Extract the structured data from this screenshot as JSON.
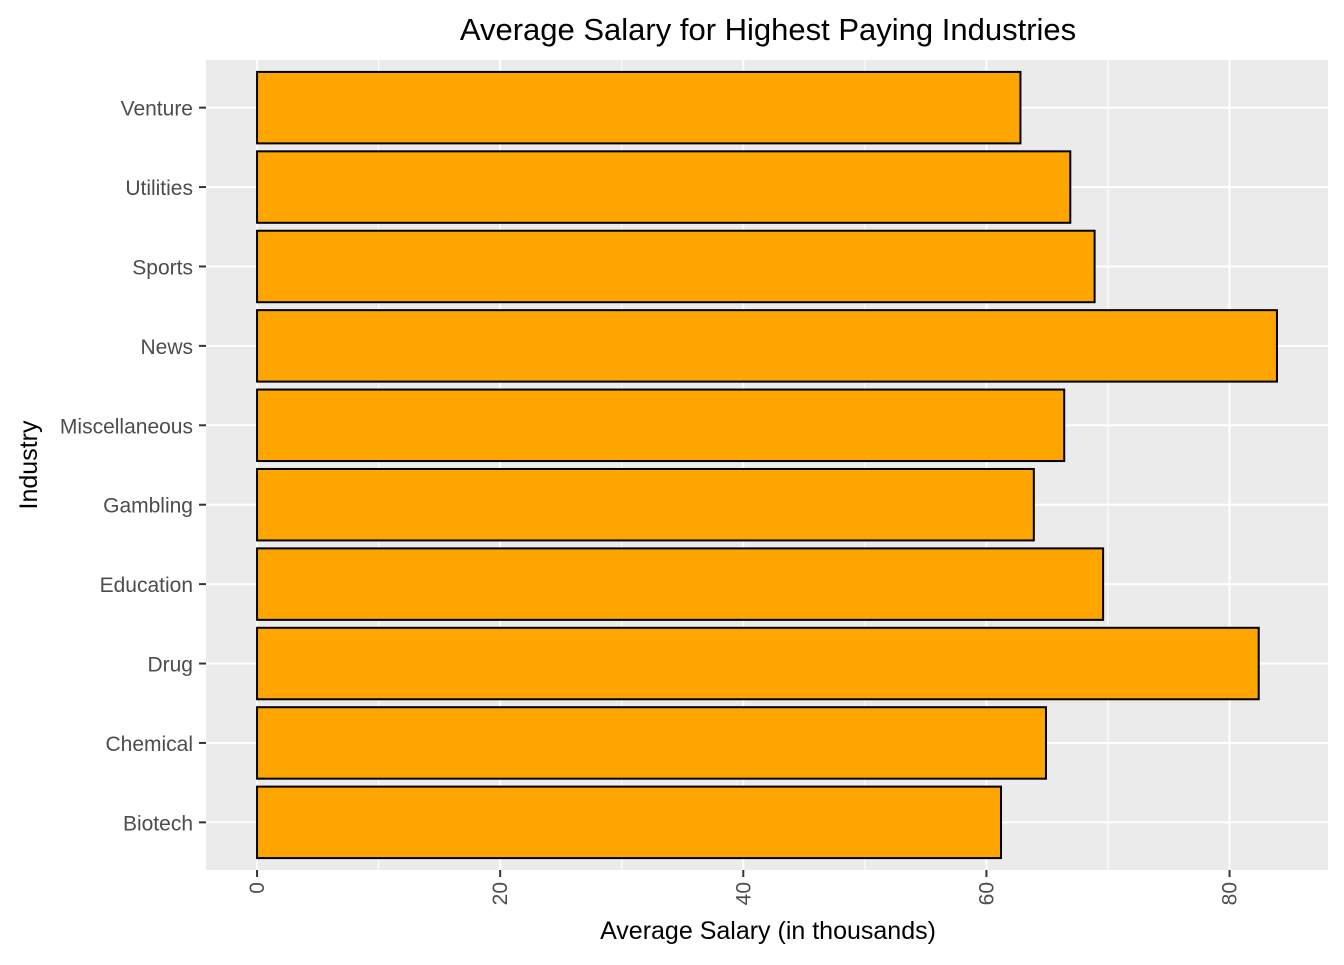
{
  "chart_data": {
    "type": "bar",
    "orientation": "horizontal",
    "title": "Average Salary for Highest Paying Industries",
    "xlabel": "Average Salary (in thousands)",
    "ylabel": "Industry",
    "categories": [
      "Biotech",
      "Chemical",
      "Drug",
      "Education",
      "Gambling",
      "Miscellaneous",
      "News",
      "Sports",
      "Utilities",
      "Venture"
    ],
    "values": [
      61.2,
      64.9,
      82.4,
      69.6,
      63.9,
      66.4,
      83.9,
      68.9,
      66.9,
      62.8
    ],
    "xlim": [
      -4.2,
      88.1
    ],
    "x_ticks": [
      0,
      20,
      40,
      60,
      80
    ],
    "x_tick_labels": [
      "0",
      "20",
      "40",
      "60",
      "80"
    ],
    "bar_color": "#FFA500",
    "bar_outline_color": "#000000",
    "panel_background": "#EBEBEB",
    "grid": true,
    "legend": "none"
  }
}
